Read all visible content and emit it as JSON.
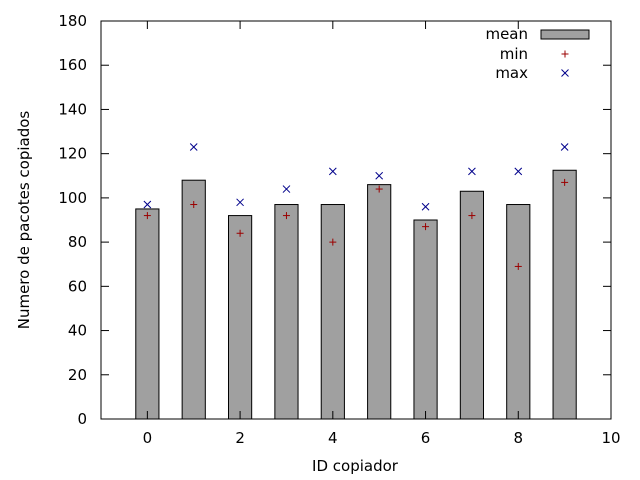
{
  "chart_data": {
    "type": "bar",
    "xlabel": "ID copiador",
    "ylabel": "Numero de pacotes copiados",
    "xlim": [
      -1,
      10
    ],
    "ylim": [
      0,
      180
    ],
    "x_ticks": [
      "0",
      "2",
      "4",
      "6",
      "8",
      "10"
    ],
    "x_tick_values": [
      0,
      2,
      4,
      6,
      8,
      10
    ],
    "y_ticks": [
      "0",
      "20",
      "40",
      "60",
      "80",
      "100",
      "120",
      "140",
      "160",
      "180"
    ],
    "y_tick_values": [
      0,
      20,
      40,
      60,
      80,
      100,
      120,
      140,
      160,
      180
    ],
    "legend_position": "top-right",
    "x": [
      0,
      1,
      2,
      3,
      4,
      5,
      6,
      7,
      8,
      9
    ],
    "series": [
      {
        "name": "mean",
        "kind": "bar",
        "color": "#a0a0a0",
        "values": [
          95,
          108,
          92,
          97,
          97,
          106,
          90,
          103,
          97,
          112.5
        ]
      },
      {
        "name": "min",
        "kind": "point-plus",
        "color": "#9b0000",
        "values": [
          92,
          97,
          84,
          92,
          80,
          104,
          87,
          92,
          69,
          107
        ]
      },
      {
        "name": "max",
        "kind": "point-x",
        "color": "#00008b",
        "values": [
          97,
          123,
          98,
          104,
          112,
          110,
          96,
          112,
          112,
          123
        ]
      }
    ]
  }
}
